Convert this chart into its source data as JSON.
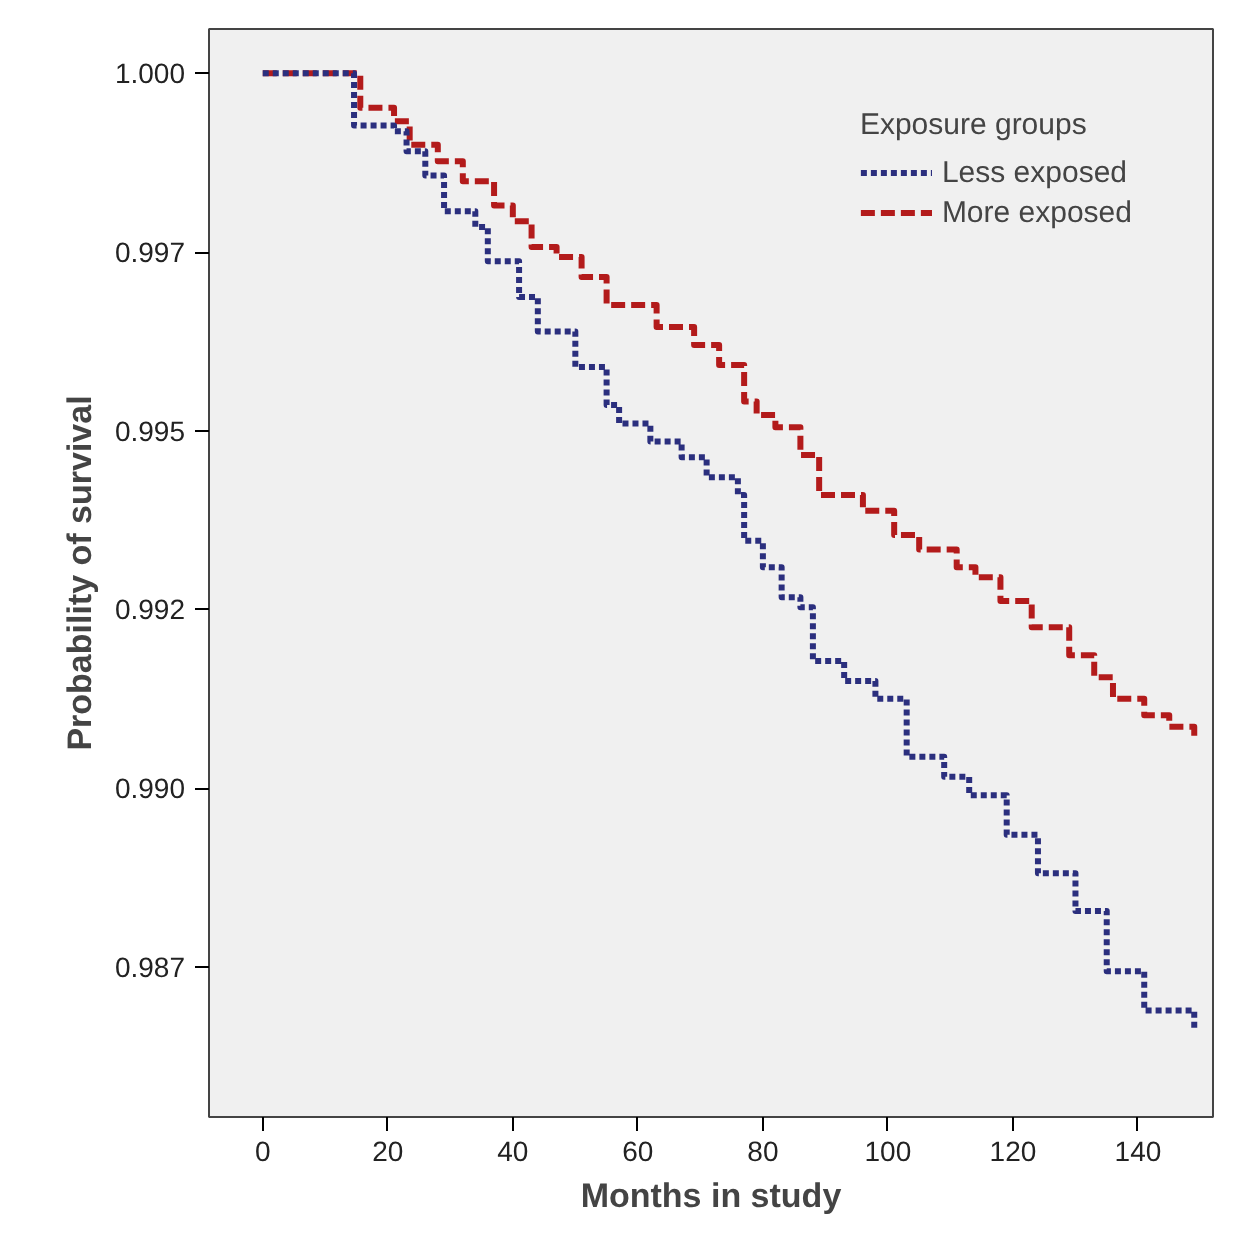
{
  "chart_data": {
    "type": "step",
    "xlabel": "Months in study",
    "ylabel": "Probability of survival",
    "legend_title": "Exposure groups",
    "legend": "top right",
    "grid": false,
    "xlim": [
      -8.6,
      152
    ],
    "xticks": [
      0,
      20,
      40,
      60,
      80,
      100,
      120,
      140
    ],
    "ylim": [
      0.9854,
      1.00062
    ],
    "yticks": [
      {
        "value": 1.0,
        "label": "1.000"
      },
      {
        "value": 0.9975,
        "label": "0.997"
      },
      {
        "value": 0.995,
        "label": "0.995"
      },
      {
        "value": 0.9925,
        "label": "0.992"
      },
      {
        "value": 0.99,
        "label": "0.990"
      },
      {
        "value": 0.9875,
        "label": "0.987"
      }
    ],
    "series": [
      {
        "name": "Less exposed",
        "color": "#2b2f7e",
        "line_style": "dotted",
        "x": [
          0,
          14.6,
          21,
          23,
          26,
          29,
          34,
          36,
          41,
          44,
          50,
          55,
          57,
          62,
          67,
          71,
          76,
          77,
          80,
          83,
          86,
          88,
          93,
          98,
          103,
          109,
          113,
          119,
          124,
          130,
          135,
          141,
          149
        ],
        "values": [
          1.0,
          0.99927,
          0.99919,
          0.99891,
          0.99857,
          0.99807,
          0.99785,
          0.99737,
          0.99687,
          0.99639,
          0.99589,
          0.99536,
          0.9951,
          0.99485,
          0.99463,
          0.99435,
          0.9941,
          0.99346,
          0.99309,
          0.99267,
          0.99253,
          0.99178,
          0.9915,
          0.99125,
          0.99044,
          0.99016,
          0.9899,
          0.98935,
          0.98881,
          0.98828,
          0.98744,
          0.98689,
          0.9866
        ]
      },
      {
        "name": "More exposed",
        "color": "#b31b1b",
        "line_style": "dashed",
        "x": [
          0,
          15.6,
          21,
          23.5,
          28,
          32,
          37,
          40,
          43,
          47,
          51,
          55,
          63,
          69,
          73,
          77,
          79,
          82,
          86,
          89,
          96,
          101,
          105,
          111,
          114,
          118,
          123,
          129,
          133,
          136,
          141,
          145,
          149
        ],
        "values": [
          1.0,
          0.99952,
          0.99933,
          0.999,
          0.99877,
          0.99849,
          0.99815,
          0.99793,
          0.99757,
          0.99743,
          0.99715,
          0.99676,
          0.99645,
          0.9962,
          0.99592,
          0.99541,
          0.99522,
          0.99505,
          0.99466,
          0.9941,
          0.99388,
          0.99354,
          0.99334,
          0.99309,
          0.99295,
          0.99262,
          0.99225,
          0.99186,
          0.99155,
          0.99125,
          0.99102,
          0.99086,
          0.99069
        ]
      }
    ]
  }
}
